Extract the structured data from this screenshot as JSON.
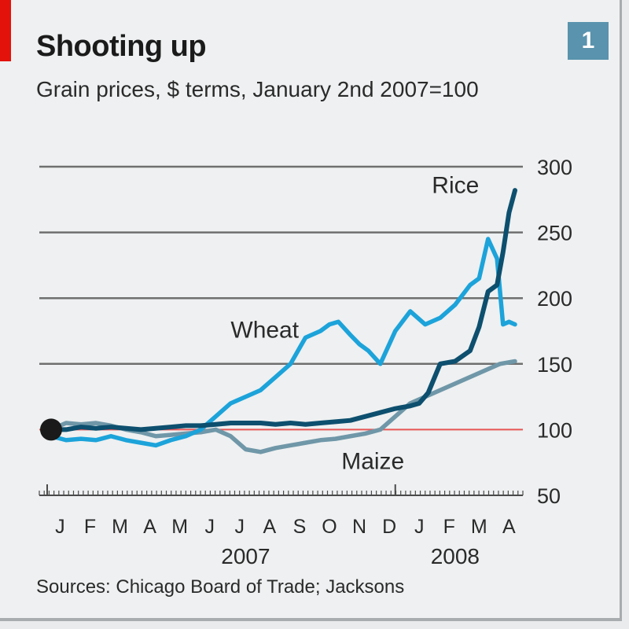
{
  "badge": "1",
  "source": "Sources: Chicago Board of Trade; Jacksons",
  "chart_data": {
    "type": "line",
    "title": "Shooting up",
    "subtitle": "Grain prices, $ terms, January 2nd 2007=100",
    "ylim": [
      50,
      300
    ],
    "yticks": [
      "300",
      "250",
      "200",
      "150",
      "100",
      "50"
    ],
    "ytick_values": [
      300,
      250,
      200,
      150,
      100,
      50
    ],
    "baseline": 100,
    "x_range": [
      0,
      15.5
    ],
    "month_labels": [
      "J",
      "F",
      "M",
      "A",
      "M",
      "J",
      "J",
      "A",
      "S",
      "O",
      "N",
      "D",
      "J",
      "F",
      "M",
      "A"
    ],
    "year_labels": [
      {
        "label": "2007",
        "x": 6.5
      },
      {
        "label": "2008",
        "x": 13.5
      }
    ],
    "start_marker": {
      "x": 0,
      "y": 100
    },
    "colors": {
      "rice": "#0d4f6e",
      "wheat": "#1ca3da",
      "maize": "#6f97a8",
      "baseline": "#e85555"
    },
    "series": [
      {
        "name": "Rice",
        "label_pos": [
          14.3,
          280
        ],
        "x": [
          0,
          0.5,
          1,
          1.5,
          2,
          2.5,
          3,
          3.5,
          4,
          4.5,
          5,
          5.5,
          6,
          6.5,
          7,
          7.5,
          8,
          8.5,
          9,
          9.5,
          10,
          10.5,
          11,
          11.5,
          12,
          12.3,
          12.6,
          13,
          13.5,
          14,
          14.3,
          14.6,
          14.9,
          15.1,
          15.3,
          15.5
        ],
        "y": [
          100,
          100,
          102,
          101,
          102,
          101,
          100,
          101,
          102,
          103,
          103,
          104,
          105,
          105,
          105,
          104,
          105,
          104,
          105,
          106,
          107,
          110,
          113,
          116,
          118,
          120,
          128,
          150,
          152,
          160,
          178,
          205,
          210,
          235,
          265,
          282
        ]
      },
      {
        "name": "Wheat",
        "label_pos": [
          6.0,
          170
        ],
        "x": [
          0,
          0.5,
          1,
          1.5,
          2,
          2.5,
          3,
          3.5,
          4,
          4.5,
          5,
          5.5,
          6,
          6.5,
          7,
          7.5,
          8,
          8.5,
          9,
          9.3,
          9.6,
          10,
          10.3,
          10.6,
          11,
          11.5,
          12,
          12.5,
          13,
          13.5,
          14,
          14.3,
          14.6,
          14.9,
          15.1,
          15.3,
          15.5
        ],
        "y": [
          95,
          92,
          93,
          92,
          95,
          92,
          90,
          88,
          92,
          95,
          100,
          110,
          120,
          125,
          130,
          140,
          150,
          170,
          175,
          180,
          182,
          172,
          165,
          160,
          150,
          175,
          190,
          180,
          185,
          195,
          210,
          215,
          245,
          230,
          180,
          182,
          180
        ]
      },
      {
        "name": "Maize",
        "label_pos": [
          9.7,
          70
        ],
        "x": [
          0,
          0.5,
          1,
          1.5,
          2,
          2.5,
          3,
          3.5,
          4,
          4.5,
          5,
          5.5,
          6,
          6.5,
          7,
          7.5,
          8,
          8.5,
          9,
          9.5,
          10,
          10.5,
          11,
          11.5,
          12,
          12.5,
          13,
          13.5,
          14,
          14.5,
          15,
          15.5
        ],
        "y": [
          100,
          105,
          104,
          105,
          103,
          100,
          98,
          95,
          96,
          97,
          98,
          100,
          95,
          85,
          83,
          86,
          88,
          90,
          92,
          93,
          95,
          97,
          100,
          110,
          120,
          125,
          130,
          135,
          140,
          145,
          150,
          152
        ]
      }
    ]
  }
}
